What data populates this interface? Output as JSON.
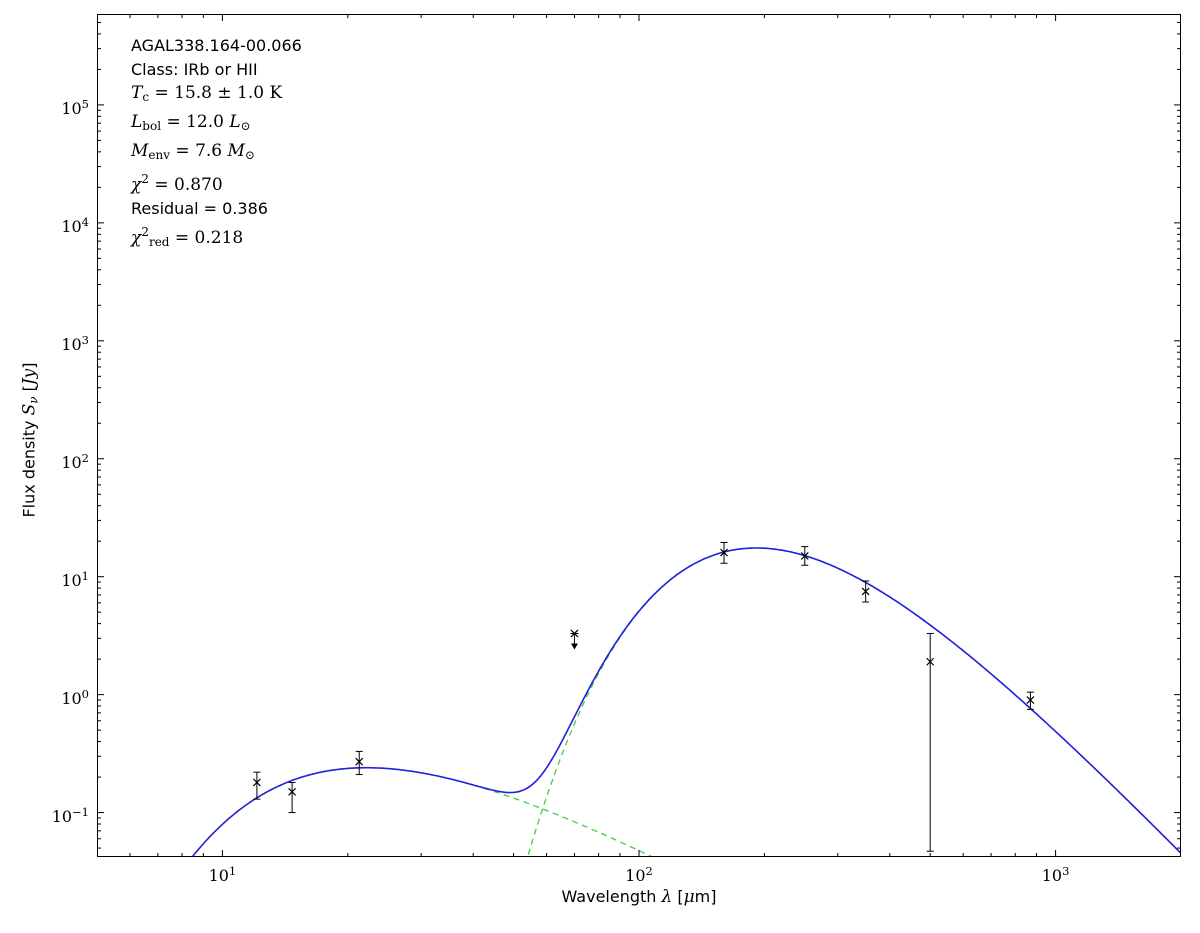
{
  "figure": {
    "background": "#ffffff"
  },
  "chart_data": {
    "type": "line",
    "title": "",
    "x_scale": "log",
    "y_scale": "log",
    "xlim": [
      5,
      2000
    ],
    "ylim": [
      0.042,
      590000
    ],
    "grid": false,
    "legend": false,
    "log_tick_mantissa": "10",
    "x_tick_exponents": [
      1,
      2,
      3
    ],
    "y_tick_exponents": [
      -1,
      0,
      1,
      2,
      3,
      4,
      5
    ],
    "xlabel": {
      "text": "Wavelength λ [μm]",
      "segments": [
        {
          "t": "Wavelength ",
          "style": "plain"
        },
        {
          "t": "λ",
          "style": "mit"
        },
        {
          "t": " [",
          "style": "plain"
        },
        {
          "t": "μ",
          "style": "mit"
        },
        {
          "t": "m",
          "style": "plain"
        },
        {
          "t": "]",
          "style": "plain"
        }
      ]
    },
    "ylabel": {
      "text": "Flux density S_ν [Jy]",
      "segments": [
        {
          "t": "Flux density ",
          "style": "plain"
        },
        {
          "t": "S",
          "style": "mit"
        },
        {
          "t": "ν",
          "style": "msubi"
        },
        {
          "t": " [",
          "style": "plain"
        },
        {
          "t": "Jy",
          "style": "mit"
        },
        {
          "t": "]",
          "style": "plain"
        }
      ]
    },
    "annotations": [
      {
        "text": "AGAL338.164-00.066",
        "segments": [
          {
            "t": "AGAL338.164-00.066",
            "style": "plain"
          }
        ]
      },
      {
        "text": "Class: IRb or HII",
        "segments": [
          {
            "t": "Class: IRb or HII",
            "style": "plain"
          }
        ]
      },
      {
        "text": "T_c = 15.8 ± 1.0 K",
        "segments": [
          {
            "t": "T",
            "style": "mit"
          },
          {
            "t": "c",
            "style": "msub"
          },
          {
            "t": " = 15.8 ± 1.0 K",
            "style": "mrm"
          }
        ]
      },
      {
        "text": "L_bol = 12.0 L_⊙",
        "segments": [
          {
            "t": "L",
            "style": "mit"
          },
          {
            "t": "bol",
            "style": "msub"
          },
          {
            "t": " = 12.0 ",
            "style": "mrm"
          },
          {
            "t": "L",
            "style": "mit"
          },
          {
            "t": "⊙",
            "style": "msub"
          }
        ]
      },
      {
        "text": "M_env = 7.6 M_⊙",
        "segments": [
          {
            "t": "M",
            "style": "mit"
          },
          {
            "t": "env",
            "style": "msub"
          },
          {
            "t": " = 7.6 ",
            "style": "mrm"
          },
          {
            "t": "M",
            "style": "mit"
          },
          {
            "t": "⊙",
            "style": "msub"
          }
        ]
      },
      {
        "text": "χ² = 0.870",
        "segments": [
          {
            "t": "χ",
            "style": "mit"
          },
          {
            "t": "2",
            "style": "msup"
          },
          {
            "t": " = 0.870",
            "style": "mrm"
          }
        ]
      },
      {
        "text": "Residual = 0.386",
        "segments": [
          {
            "t": "Residual = 0.386",
            "style": "plain"
          }
        ]
      },
      {
        "text": "χ²_red = 0.218",
        "segments": [
          {
            "t": "χ",
            "style": "mit"
          },
          {
            "t": "2",
            "style": "msup"
          },
          {
            "t": "red",
            "style": "msub"
          },
          {
            "t": " = 0.218",
            "style": "mrm"
          }
        ]
      }
    ],
    "colors": {
      "model_total": "#2020dd",
      "model_component": "#44cc44",
      "data": "#000000",
      "axes": "#000000"
    },
    "model": {
      "description": "two-component greybody fit; blue solid = sum, green dashed = individual components",
      "components": [
        {
          "name": "warm component",
          "T": 230,
          "beta": 0,
          "peak_flux": 0.24
        },
        {
          "name": "cold component",
          "T": 15.8,
          "beta": 1.8,
          "peak_flux": 17.5
        }
      ]
    },
    "points": [
      {
        "lambda": 12.1,
        "flux": 0.18,
        "err_lo": 0.13,
        "err_hi": 0.22
      },
      {
        "lambda": 14.7,
        "flux": 0.15,
        "err_lo": 0.1,
        "err_hi": 0.18
      },
      {
        "lambda": 21.3,
        "flux": 0.27,
        "err_lo": 0.21,
        "err_hi": 0.33
      },
      {
        "lambda": 70,
        "flux": 3.3,
        "upper_limit": true
      },
      {
        "lambda": 160,
        "flux": 16,
        "err_lo": 13,
        "err_hi": 19.5
      },
      {
        "lambda": 250,
        "flux": 15,
        "err_lo": 12.5,
        "err_hi": 18
      },
      {
        "lambda": 350,
        "flux": 7.5,
        "err_lo": 6.1,
        "err_hi": 9.2
      },
      {
        "lambda": 500,
        "flux": 1.9,
        "err_lo": 0.047,
        "err_hi": 3.3
      },
      {
        "lambda": 870,
        "flux": 0.9,
        "err_lo": 0.75,
        "err_hi": 1.05
      }
    ]
  }
}
